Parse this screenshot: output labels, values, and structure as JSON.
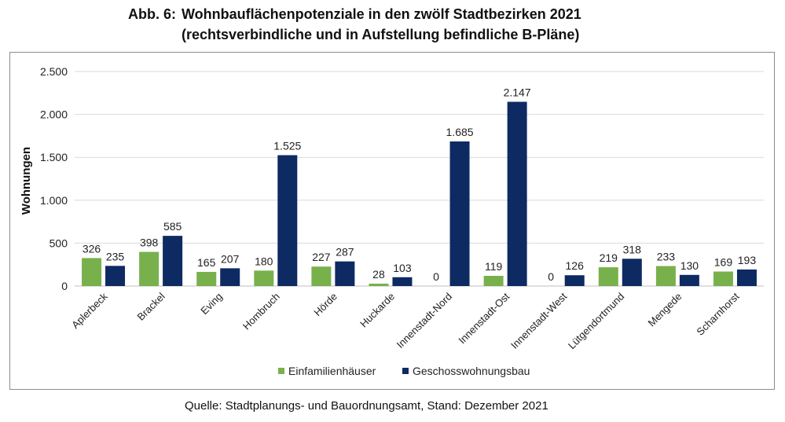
{
  "figure": {
    "prefix": "Abb. 6:",
    "title": "Wohnbauflächenpotenziale in den zwölf Stadtbezirken 2021",
    "subtitle": "(rechtsverbindliche und in Aufstellung befindliche B-Pläne)"
  },
  "source": "Quelle: Stadtplanungs- und Bauordnungsamt, Stand: Dezember 2021",
  "colors": {
    "series1": "#78b14c",
    "series2": "#0e2a62",
    "grid": "#d9d9d9"
  },
  "chart_data": {
    "type": "bar",
    "title": "Wohnbauflächenpotenziale in den zwölf Stadtbezirken 2021",
    "subtitle": "(rechtsverbindliche und in Aufstellung befindliche B-Pläne)",
    "xlabel": "",
    "ylabel": "Wohnungen",
    "ylim": [
      0,
      2500
    ],
    "yticks": [
      0,
      500,
      1000,
      1500,
      2000,
      2500
    ],
    "ytick_labels": [
      "0",
      "500",
      "1.000",
      "1.500",
      "2.000",
      "2.500"
    ],
    "grid": true,
    "legend_position": "bottom",
    "categories": [
      "Aplerbeck",
      "Brackel",
      "Eving",
      "Hombruch",
      "Hörde",
      "Huckarde",
      "Innenstadt-Nord",
      "Innenstadt-Ost",
      "Innenstadt-West",
      "Lütgendortmund",
      "Mengede",
      "Scharnhorst"
    ],
    "series": [
      {
        "name": "Einfamilienhäuser",
        "color": "#78b14c",
        "values": [
          326,
          398,
          165,
          180,
          227,
          28,
          0,
          119,
          0,
          219,
          233,
          169
        ],
        "labels": [
          "326",
          "398",
          "165",
          "180",
          "227",
          "28",
          "0",
          "119",
          "0",
          "219",
          "233",
          "169"
        ]
      },
      {
        "name": "Geschosswohnungsbau",
        "color": "#0e2a62",
        "values": [
          235,
          585,
          207,
          1525,
          287,
          103,
          1685,
          2147,
          126,
          318,
          130,
          193
        ],
        "labels": [
          "235",
          "585",
          "207",
          "1.525",
          "287",
          "103",
          "1.685",
          "2.147",
          "126",
          "318",
          "130",
          "193"
        ]
      }
    ]
  }
}
